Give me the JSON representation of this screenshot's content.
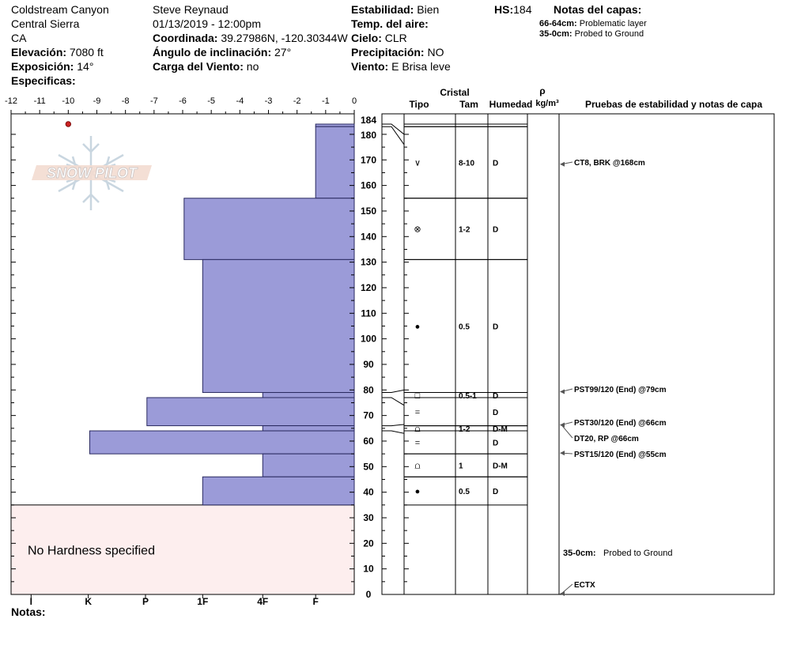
{
  "header": {
    "location": "Coldstream Canyon",
    "range": "Central Sierra",
    "state": "CA",
    "elevation_label": "Elevación:",
    "elevation_value": "7080 ft",
    "exposure_label": "Exposición:",
    "exposure_value": "14°",
    "specifics_label": "Especificas:",
    "observer": "Steve Reynaud",
    "datetime": "01/13/2019 - 12:00pm",
    "coord_label": "Coordinada:",
    "coord_value": "39.27986N, -120.30344W",
    "slope_label": "Ángulo de inclinación:",
    "slope_value": "27°",
    "wind_load_label": "Carga del Viento:",
    "wind_load_value": "no",
    "stability_label": "Estabilidad:",
    "stability_value": "Bien",
    "air_temp_label": "Temp. del aire:",
    "air_temp_value": "",
    "sky_label": "Cielo:",
    "sky_value": "CLR",
    "precip_label": "Precipitación:",
    "precip_value": "NO",
    "wind_label": "Viento:",
    "wind_value": "E Brisa leve",
    "hs_label": "HS:",
    "hs_value": "184",
    "layer_notes_label": "Notas del capas:",
    "layer_notes": [
      {
        "range": "66-64cm:",
        "text": "Problematic layer"
      },
      {
        "range": "35-0cm:",
        "text": "Probed to Ground"
      }
    ]
  },
  "logo_text": "SNOW PILOT",
  "notes_label": "Notas:",
  "no_hardness_text": "No Hardness specified",
  "table_headers": {
    "cristal": "Cristal",
    "tipo": "Tipo",
    "tam": "Tam",
    "humedad": "Humedad",
    "rho": "ρ",
    "density_unit": "kg/m³",
    "pruebas": "Pruebas de estabilidad y notas de capa"
  },
  "colors": {
    "hardness_fill": "#9b9bd8",
    "hardness_stroke": "#2a2a60",
    "no_hardness_fill": "#fdeeee",
    "temp_point": "#cc2222",
    "logo": "#c9d6e0"
  },
  "chart_data": {
    "type": "bar",
    "title": "",
    "temperature_axis": {
      "ticks": [
        "-12",
        "-11",
        "-10",
        "-9",
        "-8",
        "-7",
        "-6",
        "-5",
        "-4",
        "-3",
        "-2",
        "-1",
        "0"
      ],
      "range": [
        -12,
        0
      ]
    },
    "hardness_axis": {
      "ticks": [
        "I",
        "K",
        "P",
        "1F",
        "4F",
        "F"
      ]
    },
    "depth_axis": {
      "range": [
        0,
        184
      ],
      "ticks": [
        "0",
        "10",
        "20",
        "30",
        "40",
        "50",
        "60",
        "70",
        "80",
        "90",
        "100",
        "110",
        "120",
        "130",
        "140",
        "150",
        "160",
        "170",
        "180",
        "184"
      ]
    },
    "hardness_layers": [
      {
        "top": 184,
        "bottom": 183,
        "hardness_value": 1.35
      },
      {
        "top": 183,
        "bottom": 155,
        "hardness_value": 1.35
      },
      {
        "top": 155,
        "bottom": 131,
        "hardness_value": 5.95
      },
      {
        "top": 131,
        "bottom": 79,
        "hardness_value": 5.3
      },
      {
        "top": 79,
        "bottom": 77,
        "hardness_value": 3.2
      },
      {
        "top": 77,
        "bottom": 66,
        "hardness_value": 7.25
      },
      {
        "top": 66,
        "bottom": 64,
        "hardness_value": 3.2
      },
      {
        "top": 64,
        "bottom": 55,
        "hardness_value": 9.25
      },
      {
        "top": 55,
        "bottom": 46,
        "hardness_value": 3.2
      },
      {
        "top": 46,
        "bottom": 35,
        "hardness_value": 5.3
      }
    ],
    "no_hardness_range": [
      0,
      35
    ],
    "temperature_points": [
      {
        "depth": 184,
        "temp": -10
      }
    ],
    "layers": [
      {
        "top": 184,
        "bottom": 183,
        "grain": "",
        "size": "",
        "moisture": ""
      },
      {
        "top": 183,
        "bottom": 155,
        "grain": "∨",
        "size": "8-10",
        "moisture": "D"
      },
      {
        "top": 155,
        "bottom": 131,
        "grain": "⊗",
        "size": "1-2",
        "moisture": "D"
      },
      {
        "top": 131,
        "bottom": 79,
        "grain": "●",
        "size": "0.5",
        "moisture": "D"
      },
      {
        "top": 79,
        "bottom": 77,
        "grain": "□",
        "size": "0.5-1",
        "moisture": "D"
      },
      {
        "top": 77,
        "bottom": 66,
        "grain": "=",
        "size": "",
        "moisture": "D"
      },
      {
        "top": 66,
        "bottom": 64,
        "grain": "⩍",
        "size": "1-2",
        "moisture": "D-M"
      },
      {
        "top": 64,
        "bottom": 55,
        "grain": "=",
        "size": "",
        "moisture": "D"
      },
      {
        "top": 55,
        "bottom": 46,
        "grain": "⩍",
        "size": "1",
        "moisture": "D-M"
      },
      {
        "top": 46,
        "bottom": 35,
        "grain": "●",
        "size": "0.5",
        "moisture": "D"
      }
    ],
    "tests": [
      {
        "depth": 168,
        "text": "CT8, BRK @168cm"
      },
      {
        "depth": 79,
        "text": "PST99/120 (End) @79cm"
      },
      {
        "depth": 66,
        "text": "PST30/120 (End) @66cm"
      },
      {
        "depth": 66,
        "text": "DT20, RP @66cm"
      },
      {
        "depth": 55,
        "text": "PST15/120 (End) @55cm"
      },
      {
        "depth": 0,
        "text": "ECTX"
      }
    ],
    "probe_note": {
      "range": "35-0cm:",
      "text": "Probed to Ground"
    }
  }
}
